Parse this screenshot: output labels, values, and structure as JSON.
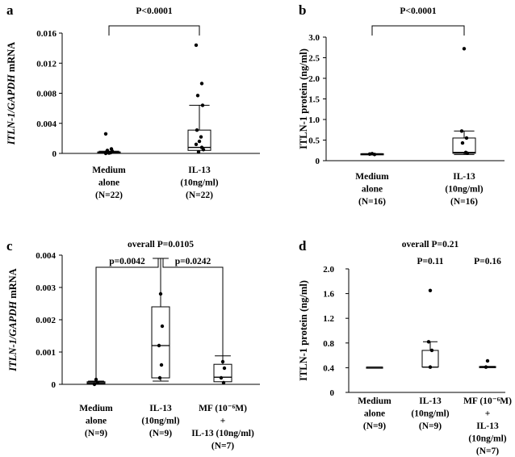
{
  "colors": {
    "ink": "#000000",
    "background": "#ffffff"
  },
  "chart_data": [
    {
      "id": "a",
      "type": "box",
      "panel_label": "a",
      "ylabel_italic": "ITLN-1/GAPDH",
      "ylabel_suffix": " mRNA",
      "ylim": [
        0,
        0.016
      ],
      "yticks": [
        0,
        0.004,
        0.008,
        0.012,
        0.016
      ],
      "ytick_labels": [
        "0",
        "0.004",
        "0.008",
        "0.012",
        "0.016"
      ],
      "categories": [
        {
          "lines": [
            "Medium",
            "alone",
            "(N=22)"
          ]
        },
        {
          "lines": [
            "IL-13",
            "(10ng/ml)",
            "(N=22)"
          ]
        }
      ],
      "boxes": [
        {
          "whisker_low": 0,
          "q1": 5e-05,
          "median": 0.0001,
          "q3": 0.0002,
          "whisker_high": 0.0003,
          "points": [
            0.0026,
            0.0006,
            0.0004,
            0.0003,
            0.0002,
            0.0001,
            5e-05,
            0
          ]
        },
        {
          "whisker_low": 0,
          "q1": 0.0004,
          "median": 0.0008,
          "q3": 0.0031,
          "whisker_high": 0.0064,
          "points": [
            0.0144,
            0.0093,
            0.0077,
            0.0064,
            0.0031,
            0.0022,
            0.0016,
            0.0012,
            0.0008,
            0.0005,
            0.0002
          ]
        }
      ],
      "comparisons": [
        {
          "from": 0,
          "to": 1,
          "label": "P<0.0001"
        }
      ]
    },
    {
      "id": "b",
      "type": "box",
      "panel_label": "b",
      "ylabel_italic": "",
      "ylabel_suffix": "ITLN-1 protein (ng/ml)",
      "ylim": [
        0,
        3.0
      ],
      "yticks": [
        0,
        0.5,
        1.0,
        1.5,
        2.0,
        2.5,
        3.0
      ],
      "ytick_labels": [
        "0",
        "0.5",
        "1.0",
        "1.5",
        "2.0",
        "2.5",
        "3.0"
      ],
      "categories": [
        {
          "lines": [
            "Medium",
            "alone",
            "(N=16)"
          ]
        },
        {
          "lines": [
            "IL-13",
            "(10ng/ml)",
            "(N=16)"
          ]
        }
      ],
      "boxes": [
        {
          "whisker_low": 0.15,
          "q1": 0.15,
          "median": 0.16,
          "q3": 0.17,
          "whisker_high": 0.17,
          "points": [
            0.17,
            0.16,
            0.15
          ]
        },
        {
          "whisker_low": 0.15,
          "q1": 0.18,
          "median": 0.2,
          "q3": 0.55,
          "whisker_high": 0.72,
          "points": [
            2.72,
            0.72,
            0.55,
            0.43,
            0.2,
            0.18
          ]
        }
      ],
      "comparisons": [
        {
          "from": 0,
          "to": 1,
          "label": "P<0.0001"
        }
      ]
    },
    {
      "id": "c",
      "type": "box",
      "panel_label": "c",
      "overall_label": "overall P=0.0105",
      "ylabel_italic": "ITLN-1/GAPDH",
      "ylabel_suffix": " mRNA",
      "ylim": [
        0,
        0.004
      ],
      "yticks": [
        0,
        0.001,
        0.002,
        0.003,
        0.004
      ],
      "ytick_labels": [
        "0",
        "0.001",
        "0.002",
        "0.003",
        "0.004"
      ],
      "categories": [
        {
          "lines": [
            "Medium",
            "alone",
            "(N=9)"
          ]
        },
        {
          "lines": [
            "IL-13",
            "(10ng/ml)",
            "(N=9)"
          ]
        },
        {
          "lines": [
            "MF (10⁻⁶M)",
            "+",
            "IL-13 (10ng/ml)",
            "(N=7)"
          ]
        }
      ],
      "boxes": [
        {
          "whisker_low": 0,
          "q1": 2e-05,
          "median": 5e-05,
          "q3": 8e-05,
          "whisker_high": 0.0001,
          "points": [
            0.00015,
            5e-05,
            0
          ]
        },
        {
          "whisker_low": 0.0001,
          "q1": 0.0002,
          "median": 0.0012,
          "q3": 0.0024,
          "whisker_high": 0.0039,
          "points": [
            0.0028,
            0.0018,
            0.0012,
            0.0006,
            0.0002
          ]
        },
        {
          "whisker_low": 0,
          "q1": 8e-05,
          "median": 0.00022,
          "q3": 0.00062,
          "whisker_high": 0.00088,
          "points": [
            0.0007,
            0.0005,
            0.0002,
            5e-05
          ]
        }
      ],
      "comparisons": [
        {
          "from": 0,
          "to": 1,
          "label": "p=0.0042"
        },
        {
          "from": 1,
          "to": 2,
          "label": "p=0.0242"
        }
      ]
    },
    {
      "id": "d",
      "type": "box",
      "panel_label": "d",
      "overall_label": "overall P=0.21",
      "ylabel_italic": "",
      "ylabel_suffix": "ITLN-1 protein (ng/ml)",
      "ylim": [
        0,
        2.0
      ],
      "yticks": [
        0,
        0.4,
        0.8,
        1.2,
        1.6,
        2.0
      ],
      "ytick_labels": [
        "0",
        "0.4",
        "0.8",
        "1.2",
        "1.6",
        "2.0"
      ],
      "categories": [
        {
          "lines": [
            "Medium",
            "alone",
            "(N=9)"
          ]
        },
        {
          "lines": [
            "IL-13",
            "(10ng/ml)",
            "(N=9)"
          ]
        },
        {
          "lines": [
            "MF (10⁻⁶M)",
            "+",
            "IL-13",
            "(10ng/ml)",
            "(N=7)"
          ]
        }
      ],
      "boxes": [
        {
          "whisker_low": 0.41,
          "q1": 0.41,
          "median": 0.41,
          "q3": 0.41,
          "whisker_high": 0.41,
          "points": []
        },
        {
          "whisker_low": 0.41,
          "q1": 0.41,
          "median": 0.41,
          "q3": 0.68,
          "whisker_high": 0.82,
          "points": [
            1.65,
            0.82,
            0.68,
            0.41
          ]
        },
        {
          "whisker_low": 0.41,
          "q1": 0.41,
          "median": 0.41,
          "q3": 0.42,
          "whisker_high": 0.42,
          "points": [
            0.51,
            0.41
          ]
        }
      ],
      "text_labels": [
        {
          "over": 1,
          "label": "P=0.11"
        },
        {
          "over": 2,
          "label": "P=0.16"
        }
      ]
    }
  ]
}
